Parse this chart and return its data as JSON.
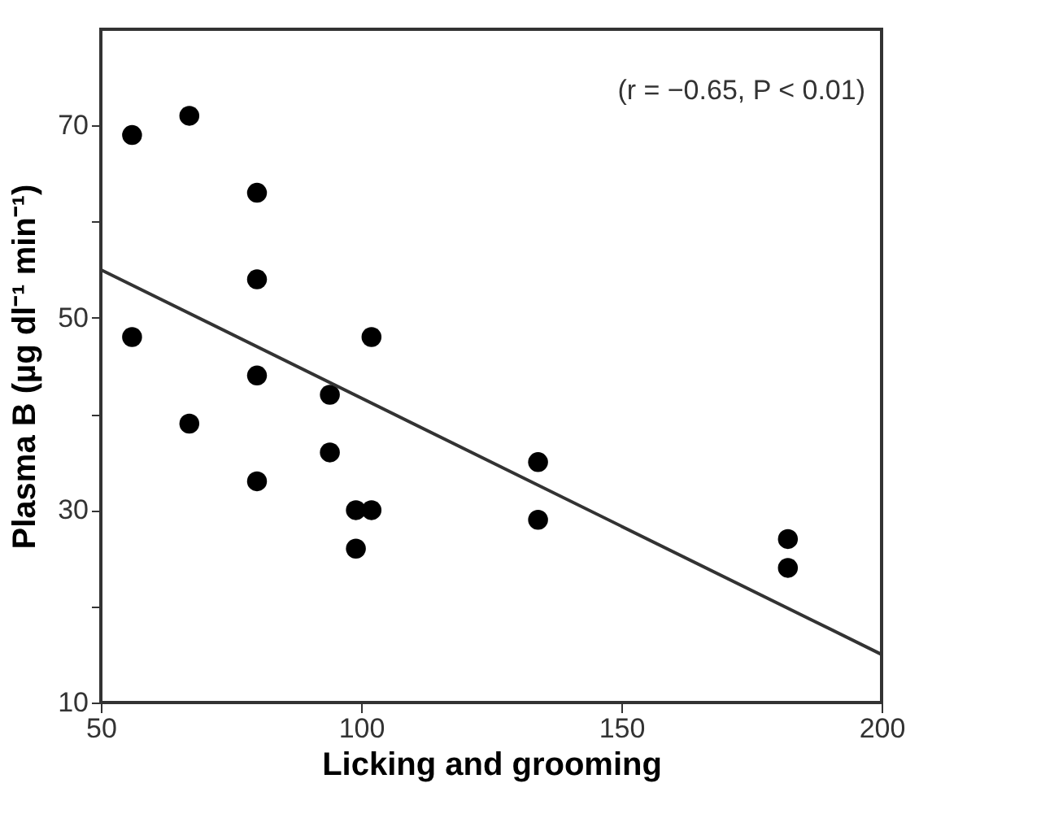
{
  "chart_data": {
    "type": "scatter",
    "xlabel": "Licking and grooming",
    "ylabel": "Plasma B (µg dl⁻¹ min⁻¹)",
    "xlim": [
      50,
      200
    ],
    "xticks": [
      50,
      100,
      150,
      200
    ],
    "ylim": [
      10,
      80
    ],
    "yticks": [
      10,
      {
        "value": 20,
        "label": null
      },
      30,
      {
        "value": 40,
        "label": null
      },
      50,
      {
        "value": 60,
        "label": null
      },
      70
    ],
    "grid": false,
    "marker": "circle",
    "annotations": [
      "(r = −0.65, P < 0.01)"
    ],
    "series": [
      {
        "color": "#000000",
        "x": [
          56,
          67,
          80,
          80,
          56,
          102,
          80,
          94,
          67,
          94,
          80,
          99,
          102,
          99,
          134,
          134,
          182,
          182
        ],
        "values": [
          69,
          71,
          63,
          54,
          48,
          48,
          44,
          42,
          39,
          36,
          33,
          30,
          30,
          26,
          35,
          29,
          27,
          24
        ]
      },
      {
        "type": "line",
        "color": "#333333",
        "line_style": "solid",
        "marker": "none",
        "x": [
          50,
          200
        ],
        "values": [
          55,
          15
        ]
      }
    ]
  }
}
